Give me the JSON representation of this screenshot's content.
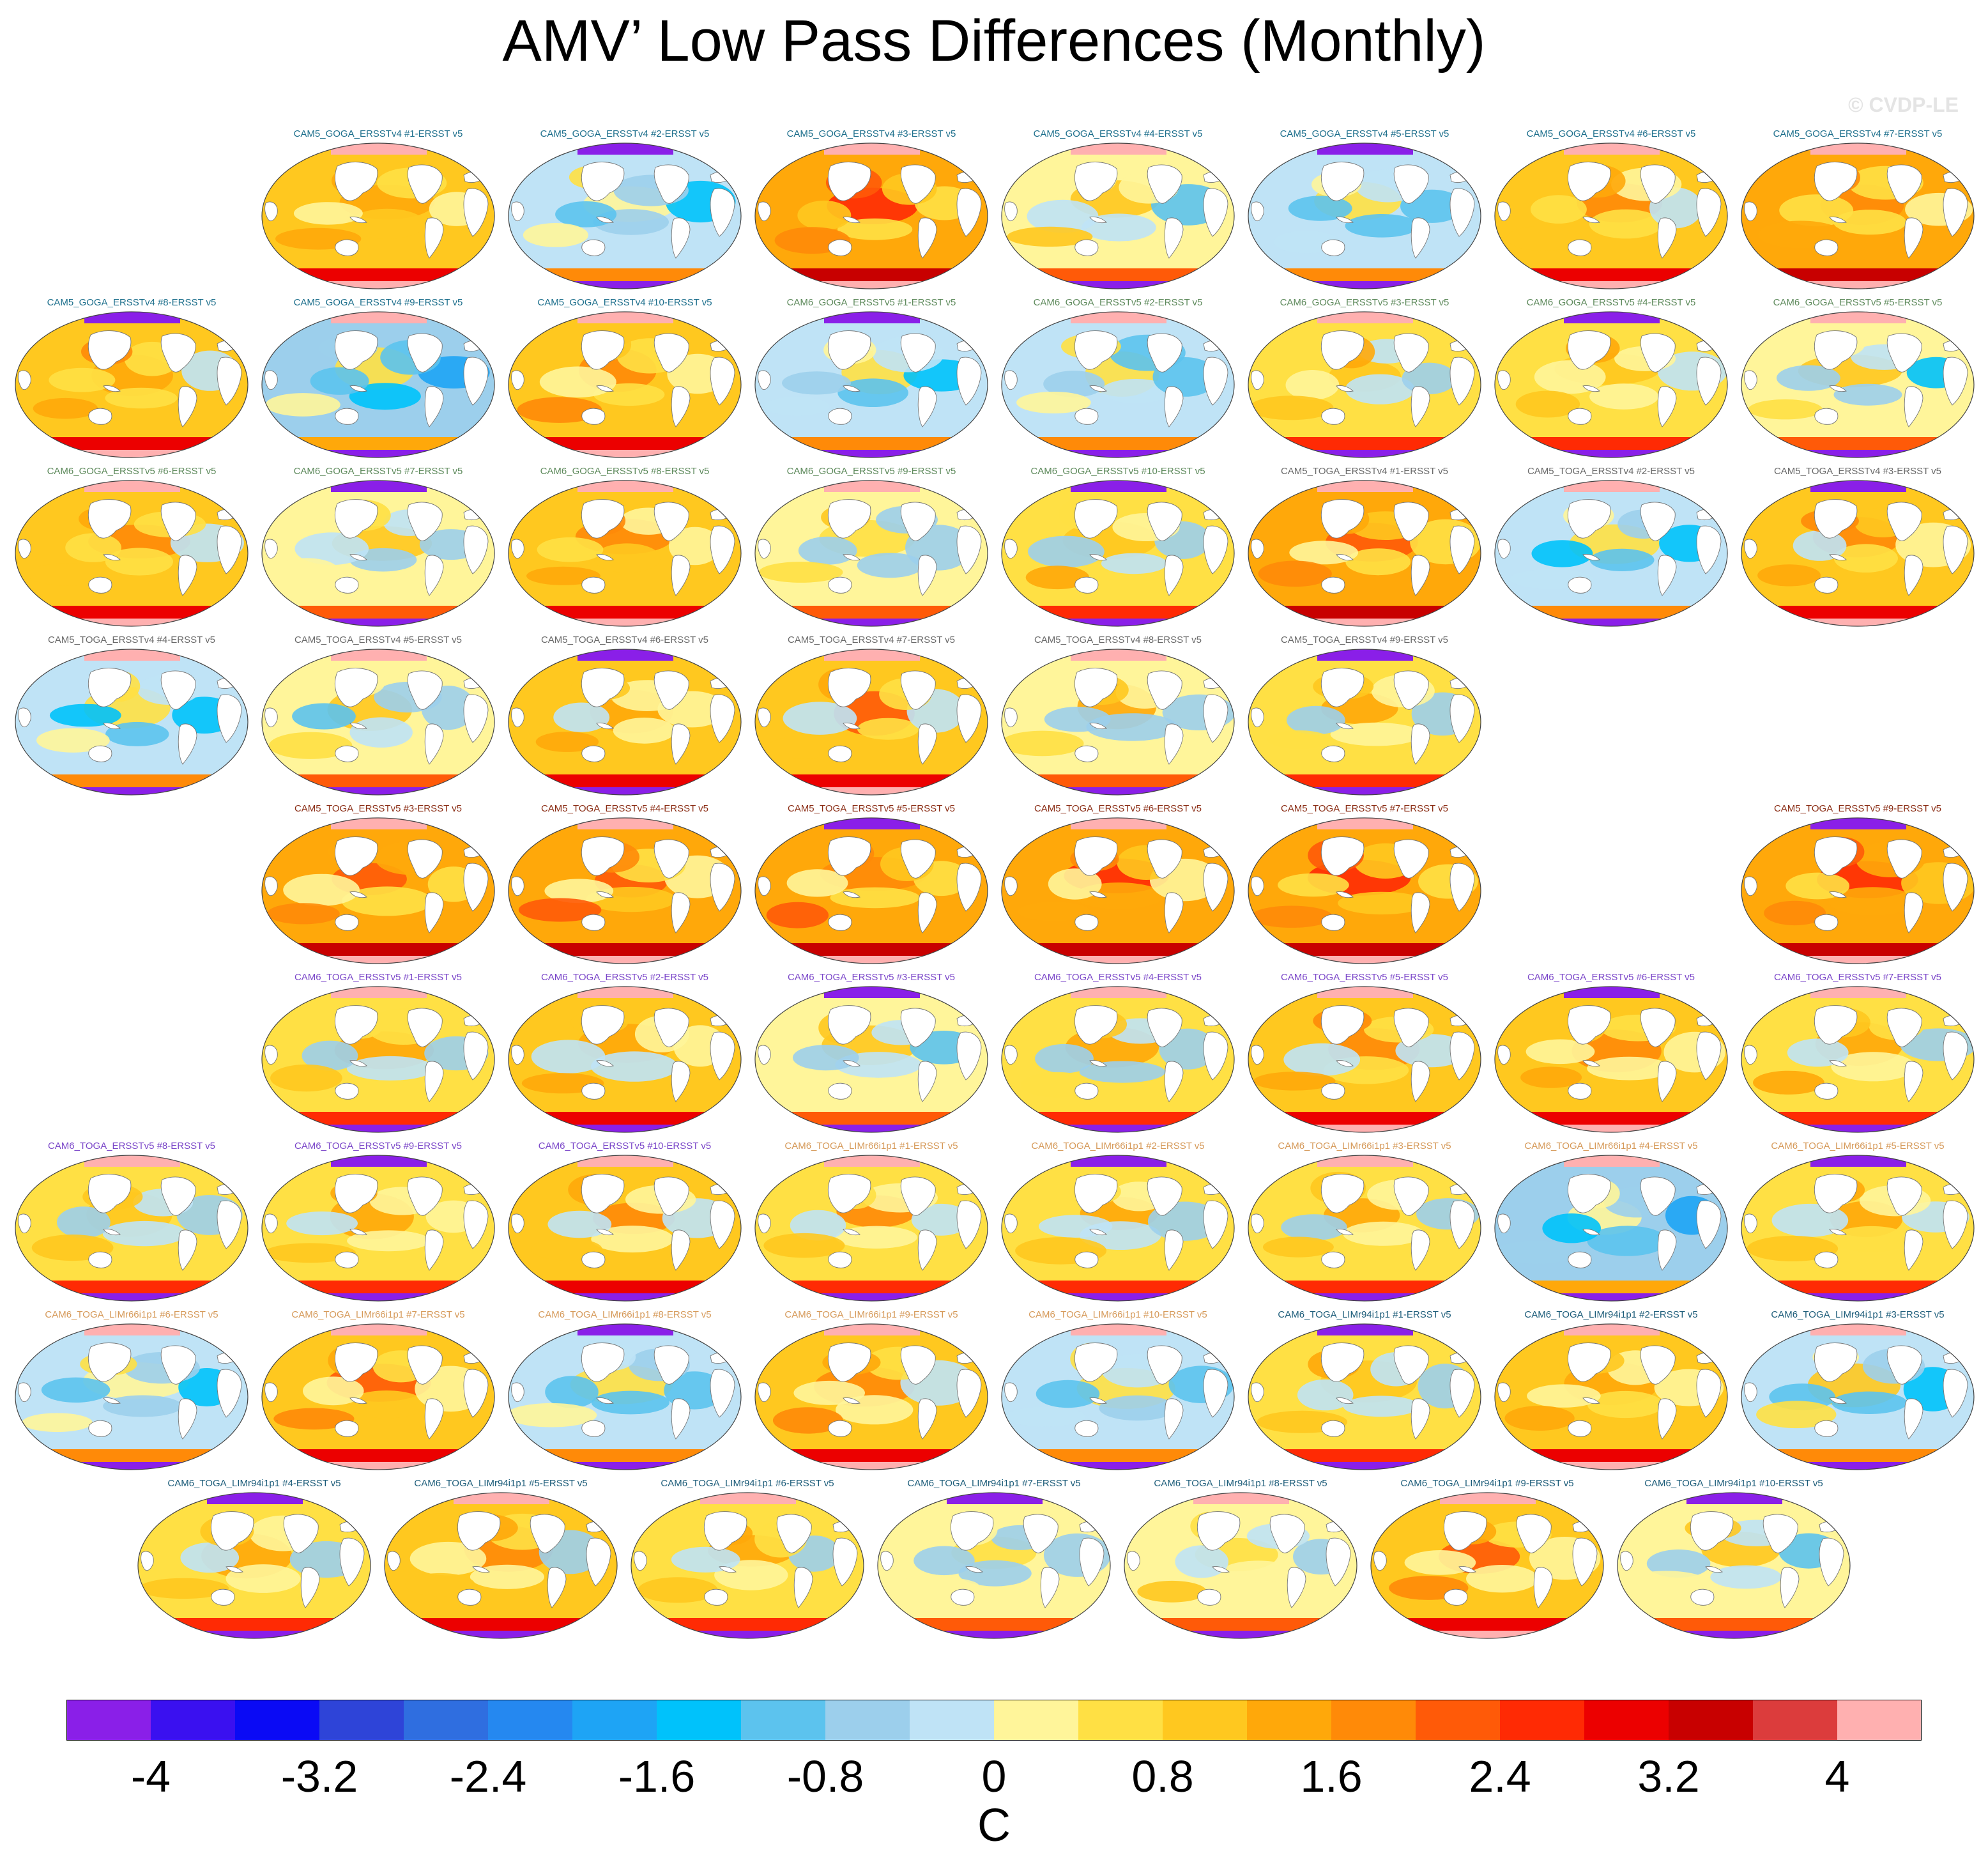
{
  "title": "AMV’ Low Pass Differences (Monthly)",
  "watermark": "© CVDP-LE",
  "chart_data": {
    "type": "heatmap",
    "description_units": "C",
    "colorbar": {
      "units_label": "C",
      "levels": [
        -4,
        -3.6,
        -3.2,
        -2.8,
        -2.4,
        -2,
        -1.6,
        -1.2,
        -0.8,
        -0.4,
        0,
        0.4,
        0.8,
        1.2,
        1.6,
        2,
        2.4,
        2.8,
        3.2,
        3.6,
        4
      ],
      "tick_labels": [
        "-4",
        "-3.2",
        "-2.4",
        "-1.6",
        "-0.8",
        "0",
        "0.8",
        "1.6",
        "2.4",
        "3.2",
        "4"
      ],
      "colors": [
        "#8a1fe8",
        "#3a10f0",
        "#0a0af5",
        "#2e44d8",
        "#2f6ee0",
        "#2588f0",
        "#1ea4f5",
        "#00c2fb",
        "#5cc3ee",
        "#9ccfec",
        "#bfe3f6",
        "#fff59a",
        "#ffe044",
        "#ffc81f",
        "#ffa80a",
        "#ff8a08",
        "#ff5a08",
        "#ff2a04",
        "#ec0000",
        "#c80000",
        "#dc3c3c",
        "#ffb0b0"
      ]
    },
    "panels": [
      {
        "label": "CAM5_GOGA_ERSSTv4 #1-ERSST v5",
        "color": "#1d6f8c",
        "anomaly": 1.0
      },
      {
        "label": "CAM5_GOGA_ERSSTv4 #2-ERSST v5",
        "color": "#1d6f8c",
        "anomaly": -0.2
      },
      {
        "label": "CAM5_GOGA_ERSSTv4 #3-ERSST v5",
        "color": "#1d6f8c",
        "anomaly": 1.4
      },
      {
        "label": "CAM5_GOGA_ERSSTv4 #4-ERSST v5",
        "color": "#1d6f8c",
        "anomaly": 0.2
      },
      {
        "label": "CAM5_GOGA_ERSSTv4 #5-ERSST v5",
        "color": "#1d6f8c",
        "anomaly": -0.3
      },
      {
        "label": "CAM5_GOGA_ERSSTv4 #6-ERSST v5",
        "color": "#1d6f8c",
        "anomaly": 1.0
      },
      {
        "label": "CAM5_GOGA_ERSSTv4 #7-ERSST v5",
        "color": "#1d6f8c",
        "anomaly": 1.2
      },
      {
        "label": "CAM5_GOGA_ERSSTv4 #8-ERSST v5",
        "color": "#1d6f8c",
        "anomaly": 1.1
      },
      {
        "label": "CAM5_GOGA_ERSSTv4 #9-ERSST v5",
        "color": "#1d6f8c",
        "anomaly": -0.6
      },
      {
        "label": "CAM5_GOGA_ERSSTv4 #10-ERSST v5",
        "color": "#1d6f8c",
        "anomaly": 0.9
      },
      {
        "label": "CAM6_GOGA_ERSSTv5 #1-ERSST v5",
        "color": "#5e8a5c",
        "anomaly": -0.2
      },
      {
        "label": "CAM6_GOGA_ERSSTv5 #2-ERSST v5",
        "color": "#5e8a5c",
        "anomaly": -0.1
      },
      {
        "label": "CAM6_GOGA_ERSSTv5 #3-ERSST v5",
        "color": "#5e8a5c",
        "anomaly": 0.6
      },
      {
        "label": "CAM6_GOGA_ERSSTv5 #4-ERSST v5",
        "color": "#5e8a5c",
        "anomaly": 0.5
      },
      {
        "label": "CAM6_GOGA_ERSSTv5 #5-ERSST v5",
        "color": "#5e8a5c",
        "anomaly": 0.0
      },
      {
        "label": "CAM6_GOGA_ERSSTv5 #6-ERSST v5",
        "color": "#5e8a5c",
        "anomaly": 0.9
      },
      {
        "label": "CAM6_GOGA_ERSSTv5 #7-ERSST v5",
        "color": "#5e8a5c",
        "anomaly": 0.1
      },
      {
        "label": "CAM6_GOGA_ERSSTv5 #8-ERSST v5",
        "color": "#5e8a5c",
        "anomaly": 1.1
      },
      {
        "label": "CAM6_GOGA_ERSSTv5 #9-ERSST v5",
        "color": "#5e8a5c",
        "anomaly": 0.0
      },
      {
        "label": "CAM6_GOGA_ERSSTv5 #10-ERSST v5",
        "color": "#5e8a5c",
        "anomaly": 0.6
      },
      {
        "label": "CAM5_TOGA_ERSSTv4 #1-ERSST v5",
        "color": "#6a6a6a",
        "anomaly": 1.2
      },
      {
        "label": "CAM5_TOGA_ERSSTv4 #2-ERSST v5",
        "color": "#6a6a6a",
        "anomaly": -0.3
      },
      {
        "label": "CAM5_TOGA_ERSSTv4 #3-ERSST v5",
        "color": "#6a6a6a",
        "anomaly": 1.1
      },
      {
        "label": "CAM5_TOGA_ERSSTv4 #4-ERSST v5",
        "color": "#6a6a6a",
        "anomaly": -0.2
      },
      {
        "label": "CAM5_TOGA_ERSSTv4 #5-ERSST v5",
        "color": "#6a6a6a",
        "anomaly": 0.2
      },
      {
        "label": "CAM5_TOGA_ERSSTv4 #6-ERSST v5",
        "color": "#6a6a6a",
        "anomaly": 0.8
      },
      {
        "label": "CAM5_TOGA_ERSSTv4 #7-ERSST v5",
        "color": "#6a6a6a",
        "anomaly": 1.0
      },
      {
        "label": "CAM5_TOGA_ERSSTv4 #8-ERSST v5",
        "color": "#6a6a6a",
        "anomaly": 0.3
      },
      {
        "label": "CAM5_TOGA_ERSSTv4 #9-ERSST v5",
        "color": "#6a6a6a",
        "anomaly": 0.4
      },
      {
        "label": "CAM5_TOGA_ERSSTv5 #3-ERSST v5",
        "color": "#8b2e16",
        "anomaly": 1.4
      },
      {
        "label": "CAM5_TOGA_ERSSTv5 #4-ERSST v5",
        "color": "#8b2e16",
        "anomaly": 1.4
      },
      {
        "label": "CAM5_TOGA_ERSSTv5 #5-ERSST v5",
        "color": "#8b2e16",
        "anomaly": 1.4
      },
      {
        "label": "CAM5_TOGA_ERSSTv5 #6-ERSST v5",
        "color": "#8b2e16",
        "anomaly": 1.4
      },
      {
        "label": "CAM5_TOGA_ERSSTv5 #7-ERSST v5",
        "color": "#8b2e16",
        "anomaly": 1.5
      },
      {
        "label": "CAM5_TOGA_ERSSTv5 #9-ERSST v5",
        "color": "#8b2e16",
        "anomaly": 1.5
      },
      {
        "label": "CAM6_TOGA_ERSSTv5 #1-ERSST v5",
        "color": "#7b47c9",
        "anomaly": 0.5
      },
      {
        "label": "CAM6_TOGA_ERSSTv5 #2-ERSST v5",
        "color": "#7b47c9",
        "anomaly": 0.8
      },
      {
        "label": "CAM6_TOGA_ERSSTv5 #3-ERSST v5",
        "color": "#7b47c9",
        "anomaly": 0.3
      },
      {
        "label": "CAM6_TOGA_ERSSTv5 #4-ERSST v5",
        "color": "#7b47c9",
        "anomaly": 0.4
      },
      {
        "label": "CAM6_TOGA_ERSSTv5 #5-ERSST v5",
        "color": "#7b47c9",
        "anomaly": 0.9
      },
      {
        "label": "CAM6_TOGA_ERSSTv5 #6-ERSST v5",
        "color": "#7b47c9",
        "anomaly": 1.0
      },
      {
        "label": "CAM6_TOGA_ERSSTv5 #7-ERSST v5",
        "color": "#7b47c9",
        "anomaly": 0.6
      },
      {
        "label": "CAM6_TOGA_ERSSTv5 #8-ERSST v5",
        "color": "#7b47c9",
        "anomaly": 0.4
      },
      {
        "label": "CAM6_TOGA_ERSSTv5 #9-ERSST v5",
        "color": "#7b47c9",
        "anomaly": 0.7
      },
      {
        "label": "CAM6_TOGA_ERSSTv5 #10-ERSST v5",
        "color": "#7b47c9",
        "anomaly": 0.8
      },
      {
        "label": "CAM6_TOGA_LIMr66i1p1 #1-ERSST v5",
        "color": "#d69a5a",
        "anomaly": 0.6
      },
      {
        "label": "CAM6_TOGA_LIMr66i1p1 #2-ERSST v5",
        "color": "#d69a5a",
        "anomaly": 0.5
      },
      {
        "label": "CAM6_TOGA_LIMr66i1p1 #3-ERSST v5",
        "color": "#d69a5a",
        "anomaly": 0.4
      },
      {
        "label": "CAM6_TOGA_LIMr66i1p1 #4-ERSST v5",
        "color": "#d69a5a",
        "anomaly": -0.5
      },
      {
        "label": "CAM6_TOGA_LIMr66i1p1 #5-ERSST v5",
        "color": "#d69a5a",
        "anomaly": 0.7
      },
      {
        "label": "CAM6_TOGA_LIMr66i1p1 #6-ERSST v5",
        "color": "#d69a5a",
        "anomaly": -0.2
      },
      {
        "label": "CAM6_TOGA_LIMr66i1p1 #7-ERSST v5",
        "color": "#d69a5a",
        "anomaly": 1.1
      },
      {
        "label": "CAM6_TOGA_LIMr66i1p1 #8-ERSST v5",
        "color": "#d69a5a",
        "anomaly": -0.4
      },
      {
        "label": "CAM6_TOGA_LIMr66i1p1 #9-ERSST v5",
        "color": "#d69a5a",
        "anomaly": 0.9
      },
      {
        "label": "CAM6_TOGA_LIMr66i1p1 #10-ERSST v5",
        "color": "#d69a5a",
        "anomaly": -0.2
      },
      {
        "label": "CAM6_TOGA_LIMr94i1p1 #1-ERSST v5",
        "color": "#1d5d7a",
        "anomaly": 0.6
      },
      {
        "label": "CAM6_TOGA_LIMr94i1p1 #2-ERSST v5",
        "color": "#1d5d7a",
        "anomaly": 0.9
      },
      {
        "label": "CAM6_TOGA_LIMr94i1p1 #3-ERSST v5",
        "color": "#1d5d7a",
        "anomaly": -0.1
      },
      {
        "label": "CAM6_TOGA_LIMr94i1p1 #4-ERSST v5",
        "color": "#1d5d7a",
        "anomaly": 0.4
      },
      {
        "label": "CAM6_TOGA_LIMr94i1p1 #5-ERSST v5",
        "color": "#1d5d7a",
        "anomaly": 0.8
      },
      {
        "label": "CAM6_TOGA_LIMr94i1p1 #6-ERSST v5",
        "color": "#1d5d7a",
        "anomaly": 0.6
      },
      {
        "label": "CAM6_TOGA_LIMr94i1p1 #7-ERSST v5",
        "color": "#1d5d7a",
        "anomaly": 0.0
      },
      {
        "label": "CAM6_TOGA_LIMr94i1p1 #8-ERSST v5",
        "color": "#1d5d7a",
        "anomaly": 0.3
      },
      {
        "label": "CAM6_TOGA_LIMr94i1p1 #9-ERSST v5",
        "color": "#1d5d7a",
        "anomaly": 1.0
      },
      {
        "label": "CAM6_TOGA_LIMr94i1p1 #10-ERSST v5",
        "color": "#1d5d7a",
        "anomaly": 0.2
      }
    ]
  }
}
